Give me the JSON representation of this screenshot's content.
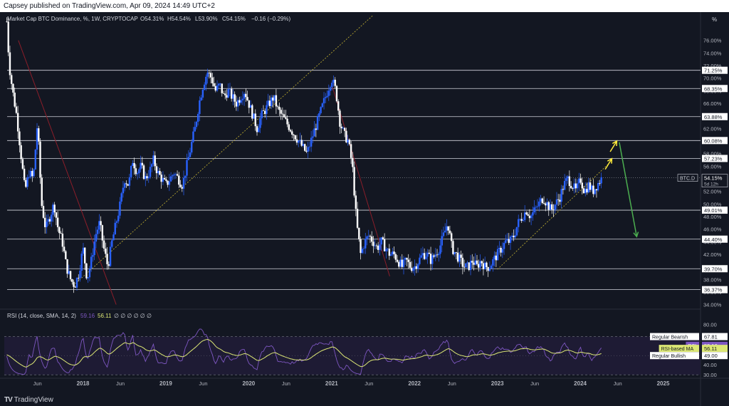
{
  "publisher_line": "Capsey published on TradingView.com, Apr 09, 2024 14:49 UTC+2",
  "brand": "TradingView",
  "brand_logo": "tradingview-logo-icon",
  "chart_data": {
    "type": "candlestick",
    "header": {
      "symbol": "Market Cap BTC Dominance, %, 1W, CRYPTOCAP",
      "open": "O54.31%",
      "high": "H54.54%",
      "low": "L53.90%",
      "close": "C54.15%",
      "change": "−0.16 (−0.29%)"
    },
    "price_axis_unit": "%",
    "price_ylim": [
      33.5,
      80.5
    ],
    "price_ticks": [
      "76.00%",
      "74.00%",
      "72.00%",
      "70.00%",
      "68.00%",
      "66.00%",
      "64.00%",
      "62.00%",
      "60.00%",
      "58.00%",
      "56.00%",
      "54.00%",
      "52.00%",
      "50.00%",
      "48.00%",
      "46.00%",
      "44.00%",
      "42.00%",
      "40.00%",
      "38.00%",
      "36.00%",
      "34.00%"
    ],
    "price_tick_values": [
      76,
      74,
      72,
      70,
      68,
      66,
      64,
      62,
      60,
      58,
      56,
      54,
      52,
      50,
      48,
      46,
      44,
      42,
      40,
      38,
      36,
      34
    ],
    "horizontal_levels": [
      {
        "value": 71.25,
        "label": "71.25%"
      },
      {
        "value": 68.35,
        "label": "68.35%"
      },
      {
        "value": 63.88,
        "label": "63.88%"
      },
      {
        "value": 60.08,
        "label": "60.08%"
      },
      {
        "value": 57.23,
        "label": "57.23%"
      },
      {
        "value": 49.01,
        "label": "49.01%"
      },
      {
        "value": 44.4,
        "label": "44.40%"
      },
      {
        "value": 39.7,
        "label": "39.70%"
      },
      {
        "value": 36.37,
        "label": "36.37%"
      }
    ],
    "current_price": {
      "symbol": "BTC.D",
      "value": 54.15,
      "label": "54.15%",
      "countdown": "5d 12h"
    },
    "x_ticks": [
      "Jun",
      "2018",
      "Jun",
      "2019",
      "Jun",
      "2020",
      "Jun",
      "2021",
      "Jun",
      "2022",
      "Jun",
      "2023",
      "Jun",
      "2024",
      "Jun",
      "2025"
    ],
    "x_tick_years": [
      2017.45,
      2018.0,
      2018.45,
      2019.0,
      2019.45,
      2020.0,
      2020.45,
      2021.0,
      2021.45,
      2022.0,
      2022.45,
      2023.0,
      2023.45,
      2024.0,
      2024.45,
      2025.0
    ],
    "x_range": [
      2017.05,
      2025.45
    ],
    "price_path": [
      [
        2017.08,
        79
      ],
      [
        2017.11,
        72
      ],
      [
        2017.15,
        68
      ],
      [
        2017.2,
        64
      ],
      [
        2017.25,
        58
      ],
      [
        2017.3,
        52
      ],
      [
        2017.35,
        55
      ],
      [
        2017.4,
        54
      ],
      [
        2017.45,
        63
      ],
      [
        2017.5,
        50
      ],
      [
        2017.55,
        46
      ],
      [
        2017.6,
        48
      ],
      [
        2017.65,
        50
      ],
      [
        2017.7,
        46
      ],
      [
        2017.75,
        44
      ],
      [
        2017.8,
        40
      ],
      [
        2017.85,
        38
      ],
      [
        2017.9,
        37
      ],
      [
        2017.95,
        39
      ],
      [
        2018.0,
        43
      ],
      [
        2018.05,
        38
      ],
      [
        2018.1,
        41
      ],
      [
        2018.15,
        45
      ],
      [
        2018.2,
        47
      ],
      [
        2018.25,
        43
      ],
      [
        2018.3,
        40
      ],
      [
        2018.35,
        44
      ],
      [
        2018.4,
        47
      ],
      [
        2018.45,
        50
      ],
      [
        2018.5,
        54
      ],
      [
        2018.55,
        53
      ],
      [
        2018.6,
        57
      ],
      [
        2018.65,
        55
      ],
      [
        2018.7,
        56
      ],
      [
        2018.75,
        54
      ],
      [
        2018.8,
        55
      ],
      [
        2018.85,
        57
      ],
      [
        2018.9,
        55
      ],
      [
        2018.95,
        54
      ],
      [
        2019.0,
        53
      ],
      [
        2019.05,
        54
      ],
      [
        2019.1,
        55
      ],
      [
        2019.15,
        54
      ],
      [
        2019.2,
        53
      ],
      [
        2019.25,
        56
      ],
      [
        2019.3,
        59
      ],
      [
        2019.35,
        62
      ],
      [
        2019.4,
        66
      ],
      [
        2019.45,
        69
      ],
      [
        2019.5,
        71
      ],
      [
        2019.55,
        70
      ],
      [
        2019.6,
        68
      ],
      [
        2019.65,
        69
      ],
      [
        2019.7,
        67
      ],
      [
        2019.75,
        68
      ],
      [
        2019.8,
        67
      ],
      [
        2019.85,
        66
      ],
      [
        2019.9,
        67
      ],
      [
        2019.95,
        68
      ],
      [
        2020.0,
        66
      ],
      [
        2020.05,
        64
      ],
      [
        2020.1,
        62
      ],
      [
        2020.15,
        64
      ],
      [
        2020.2,
        65
      ],
      [
        2020.25,
        66
      ],
      [
        2020.3,
        67
      ],
      [
        2020.35,
        65
      ],
      [
        2020.4,
        64
      ],
      [
        2020.45,
        63
      ],
      [
        2020.5,
        62
      ],
      [
        2020.55,
        61
      ],
      [
        2020.6,
        60
      ],
      [
        2020.65,
        59
      ],
      [
        2020.7,
        58
      ],
      [
        2020.75,
        60
      ],
      [
        2020.8,
        62
      ],
      [
        2020.85,
        64
      ],
      [
        2020.9,
        66
      ],
      [
        2020.95,
        68
      ],
      [
        2021.0,
        70
      ],
      [
        2021.05,
        68
      ],
      [
        2021.1,
        63
      ],
      [
        2021.15,
        61
      ],
      [
        2021.2,
        60
      ],
      [
        2021.25,
        56
      ],
      [
        2021.3,
        47
      ],
      [
        2021.35,
        42
      ],
      [
        2021.4,
        44
      ],
      [
        2021.45,
        45
      ],
      [
        2021.5,
        44
      ],
      [
        2021.55,
        43
      ],
      [
        2021.6,
        44
      ],
      [
        2021.65,
        43
      ],
      [
        2021.7,
        42
      ],
      [
        2021.75,
        42
      ],
      [
        2021.8,
        41
      ],
      [
        2021.85,
        40
      ],
      [
        2021.9,
        41
      ],
      [
        2021.95,
        40
      ],
      [
        2022.0,
        40
      ],
      [
        2022.05,
        41
      ],
      [
        2022.1,
        42
      ],
      [
        2022.15,
        42
      ],
      [
        2022.2,
        41
      ],
      [
        2022.25,
        42
      ],
      [
        2022.3,
        43
      ],
      [
        2022.35,
        45
      ],
      [
        2022.4,
        47
      ],
      [
        2022.45,
        43
      ],
      [
        2022.5,
        42
      ],
      [
        2022.55,
        41
      ],
      [
        2022.6,
        40
      ],
      [
        2022.65,
        40
      ],
      [
        2022.7,
        41
      ],
      [
        2022.75,
        40
      ],
      [
        2022.8,
        41
      ],
      [
        2022.85,
        40
      ],
      [
        2022.9,
        40
      ],
      [
        2022.95,
        41
      ],
      [
        2023.0,
        42
      ],
      [
        2023.05,
        43
      ],
      [
        2023.1,
        44
      ],
      [
        2023.15,
        44
      ],
      [
        2023.2,
        45
      ],
      [
        2023.25,
        47
      ],
      [
        2023.3,
        48
      ],
      [
        2023.35,
        49
      ],
      [
        2023.4,
        48
      ],
      [
        2023.45,
        49
      ],
      [
        2023.5,
        50
      ],
      [
        2023.55,
        51
      ],
      [
        2023.6,
        50
      ],
      [
        2023.65,
        49
      ],
      [
        2023.7,
        50
      ],
      [
        2023.75,
        51
      ],
      [
        2023.8,
        53
      ],
      [
        2023.85,
        54
      ],
      [
        2023.9,
        53
      ],
      [
        2023.95,
        52
      ],
      [
        2024.0,
        54
      ],
      [
        2024.05,
        52
      ],
      [
        2024.1,
        53
      ],
      [
        2024.15,
        52
      ],
      [
        2024.2,
        53
      ],
      [
        2024.25,
        54
      ],
      [
        2024.27,
        54.15
      ]
    ],
    "annotations": {
      "yellow_arrows": [
        {
          "from": [
            2024.3,
            55.5
          ],
          "to": [
            2024.38,
            57.2
          ]
        },
        {
          "from": [
            2024.36,
            58.3
          ],
          "to": [
            2024.44,
            60.0
          ]
        }
      ],
      "green_arrow": {
        "from": [
          2024.47,
          59.8
        ],
        "to": [
          2024.68,
          44.8
        ]
      },
      "yellow_trendlines": [
        {
          "from": [
            2017.88,
            37.0
          ],
          "to": [
            2021.5,
            80.0
          ]
        },
        {
          "from": [
            2023.0,
            39.6
          ],
          "to": [
            2024.35,
            56.5
          ]
        }
      ],
      "red_trendlines": [
        {
          "from": [
            2017.22,
            76
          ],
          "to": [
            2018.4,
            34
          ]
        },
        {
          "from": [
            2021.0,
            69.0
          ],
          "to": [
            2021.7,
            38.5
          ]
        }
      ]
    },
    "rsi_panel": {
      "title": "RSI (14, close, SMA, 14, 2)",
      "rsi_value": "59.16",
      "ma_value": "56.11",
      "na_markers": "∅ ∅ ∅ ∅ ∅ ∅",
      "ylim": [
        28,
        83
      ],
      "ticks": [
        "80.00",
        "70.00",
        "60.00",
        "50.00",
        "40.00",
        "30.00"
      ],
      "tick_values": [
        80,
        70,
        60,
        50,
        40,
        30
      ],
      "bands": [
        67.81,
        30.0
      ],
      "labels": [
        {
          "text": "Regular Bearish",
          "value": "67.81",
          "y": 67.81
        },
        {
          "text": "RSI",
          "value": "59.16",
          "y": 59.16
        },
        {
          "text": "RSI-based MA",
          "value": "56.11",
          "y": 56.11
        },
        {
          "text": "Regular Bullish",
          "value": "49.00",
          "y": 49.0
        }
      ]
    },
    "colors": {
      "background": "#131722",
      "candle_up": "#2962ff",
      "candle_down": "#ffffff",
      "level_line": "#d1d4dc",
      "rsi_line": "#7e57c2",
      "rsi_ma": "#dce775",
      "rsi_bg": "#1e1b34",
      "arrow_yellow": "#ffeb3b",
      "arrow_green": "#4caf50",
      "trend_yellow": "#c6b432",
      "trend_red": "#8b1e2a"
    }
  }
}
